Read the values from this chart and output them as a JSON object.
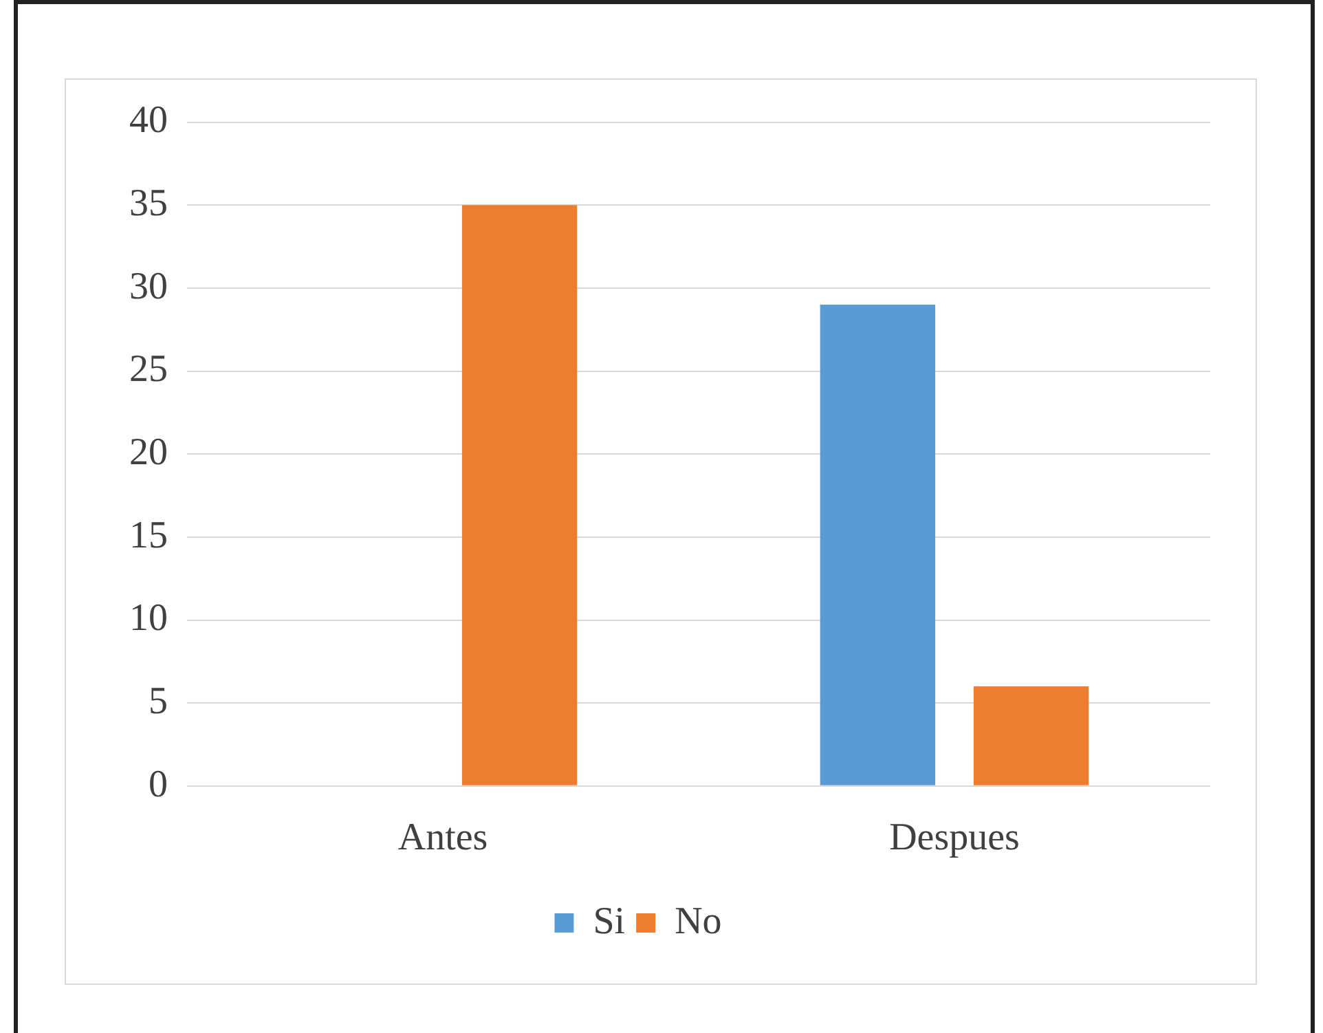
{
  "chart_data": {
    "type": "bar",
    "categories": [
      "Antes",
      "Despues"
    ],
    "series": [
      {
        "name": "Si",
        "color": "#5b9bd5",
        "values": [
          0,
          29
        ]
      },
      {
        "name": "No",
        "color": "#ed7d31",
        "values": [
          35,
          6
        ]
      }
    ],
    "ylim": [
      0,
      40
    ],
    "yticks": [
      0,
      5,
      10,
      15,
      20,
      25,
      30,
      35,
      40
    ],
    "grid": "y",
    "legend": "bottom"
  }
}
